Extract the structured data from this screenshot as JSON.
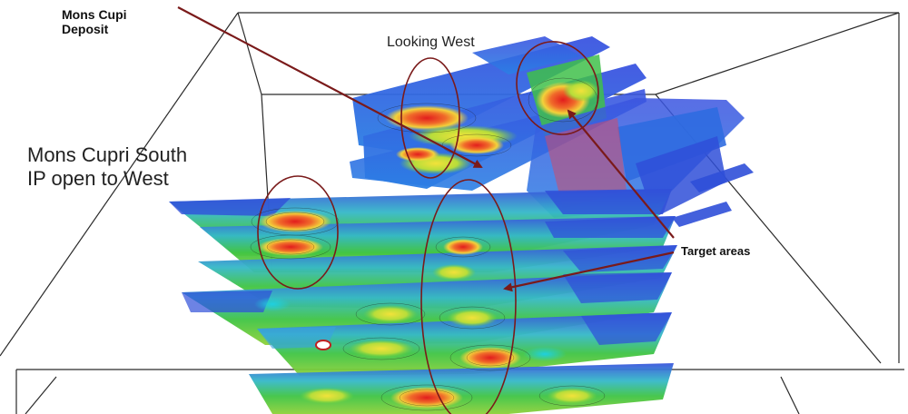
{
  "labels": {
    "deposit": "Mons Cupi Deposit",
    "looking": "Looking West",
    "south_line1": "Mons Cupri South",
    "south_line2": "IP open to West",
    "target": "Target  areas"
  },
  "colors": {
    "annotation": "#7a1a1a",
    "box_line": "#2a2a2a",
    "ip_low": "#2f4fd8",
    "ip_mid": "#33c24a",
    "ip_high": "#e8321e"
  }
}
